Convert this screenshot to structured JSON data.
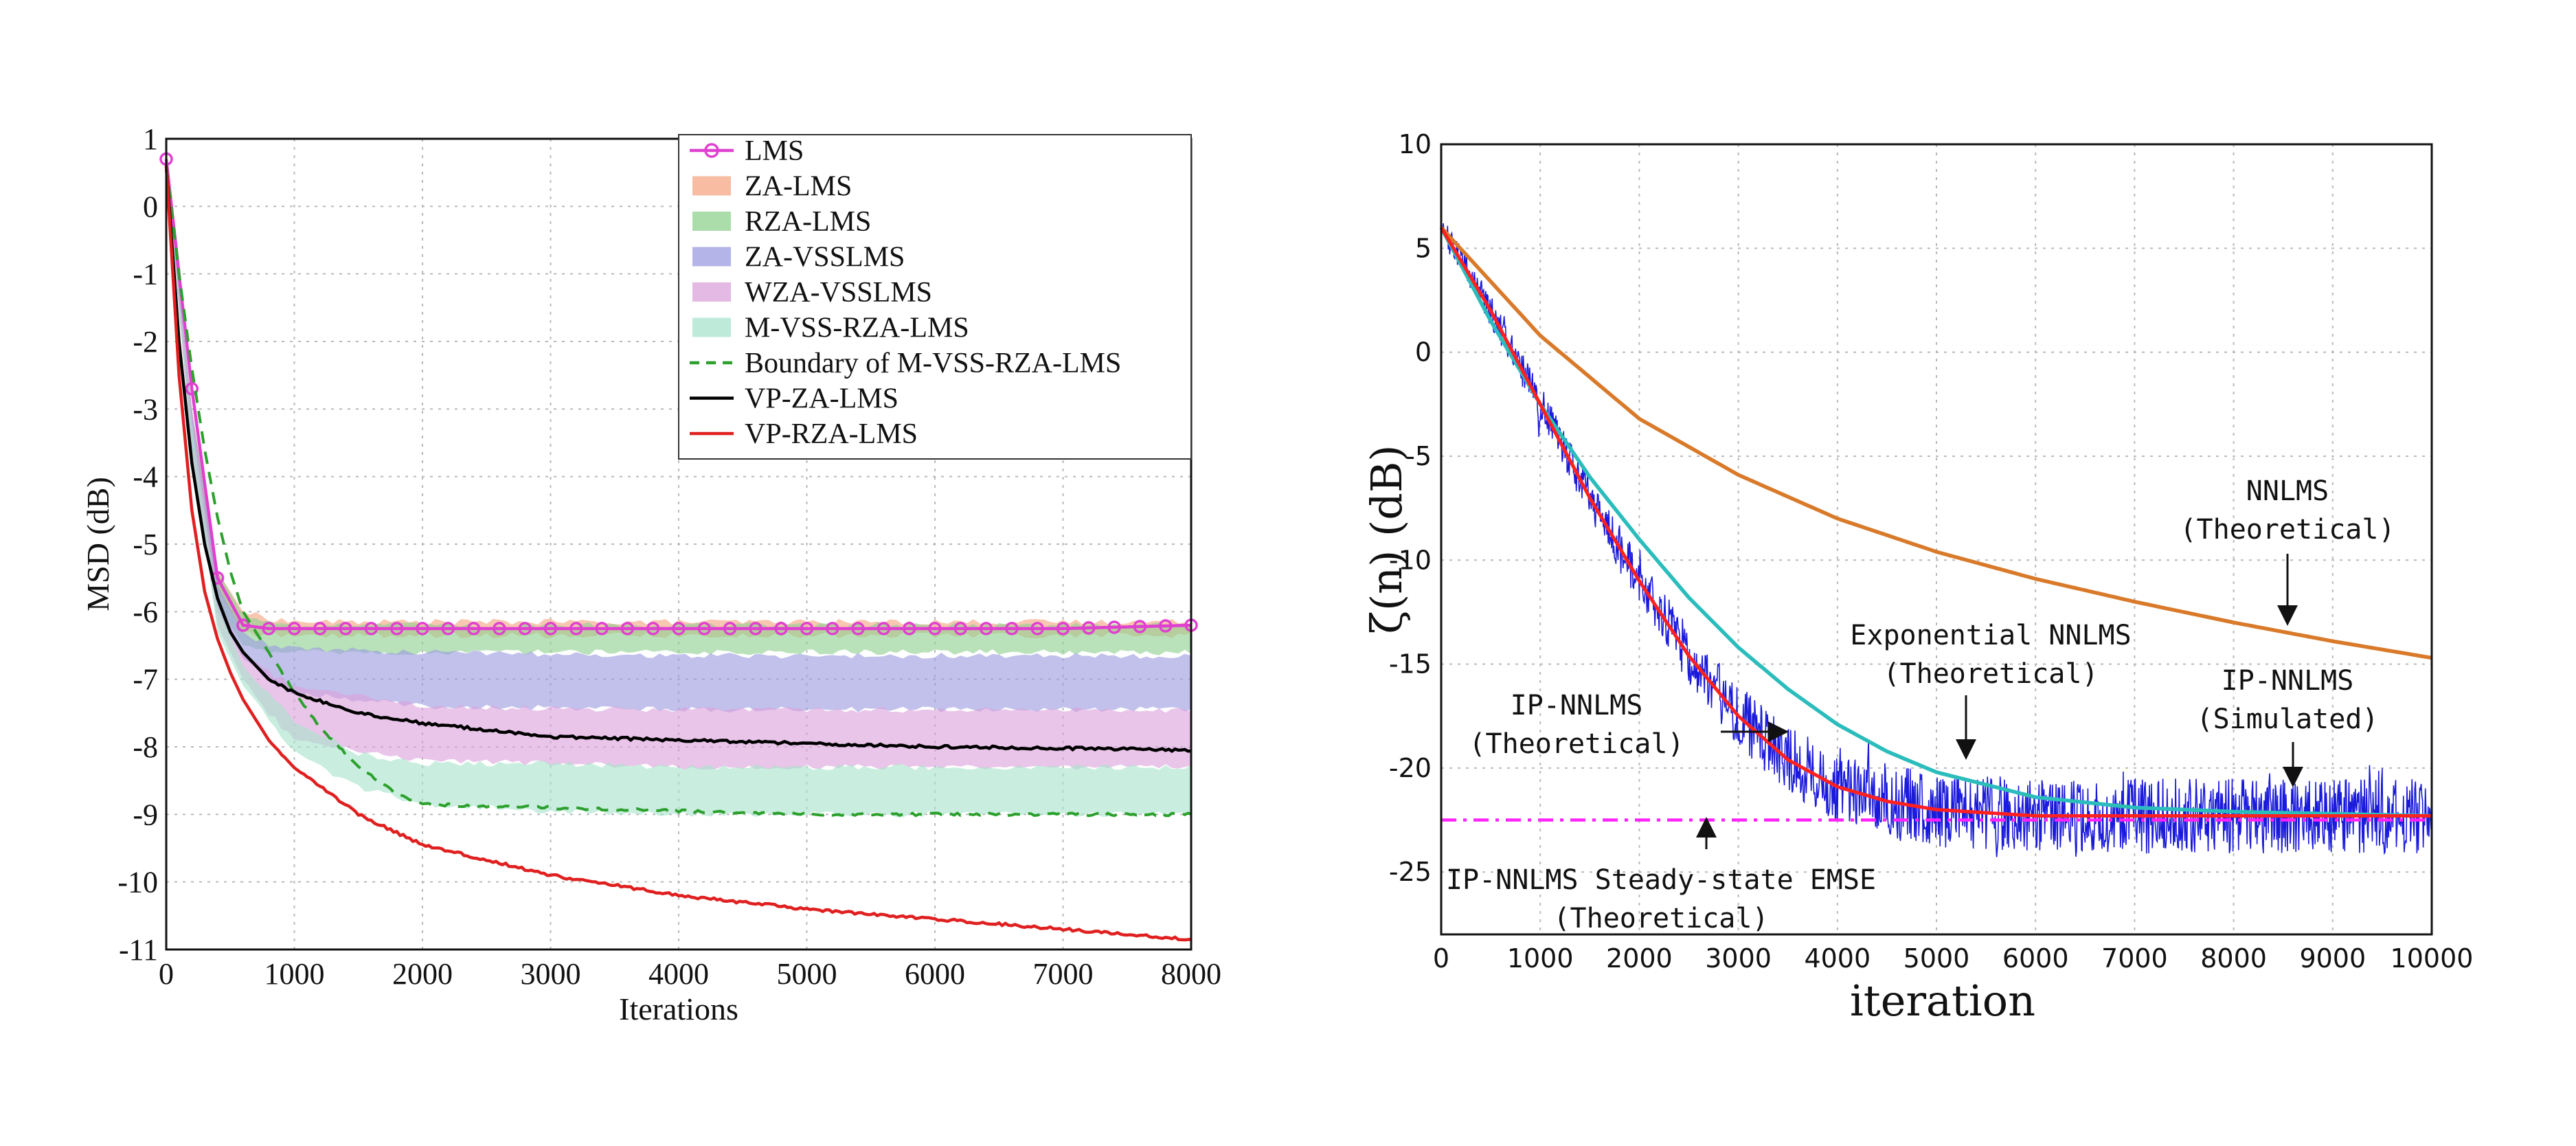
{
  "chart_data": [
    {
      "type": "line",
      "title": "",
      "xlabel": "Iterations",
      "ylabel": "MSD (dB)",
      "xlim": [
        0,
        8000
      ],
      "ylim": [
        -11,
        1
      ],
      "grid": true,
      "legend_position": "top-right",
      "xticks": [
        "0",
        "1000",
        "2000",
        "3000",
        "4000",
        "5000",
        "6000",
        "7000",
        "8000"
      ],
      "yticks": [
        "1",
        "0",
        "-1",
        "-2",
        "-3",
        "-4",
        "-5",
        "-6",
        "-7",
        "-8",
        "-9",
        "-10",
        "-11"
      ],
      "legend": [
        "LMS",
        "ZA-LMS",
        "RZA-LMS",
        "ZA-VSSLMS",
        "WZA-VSSLMS",
        "M-VSS-RZA-LMS",
        "Boundary of M-VSS-RZA-LMS",
        "VP-ZA-LMS",
        "VP-RZA-LMS"
      ],
      "series": [
        {
          "name": "LMS",
          "color": "#e040d0",
          "style": "line-circle-markers",
          "x": [
            0,
            200,
            400,
            600,
            800,
            1000,
            1500,
            2000,
            3000,
            4000,
            5000,
            6000,
            7000,
            8000
          ],
          "y": [
            0.7,
            -2.7,
            -5.5,
            -6.2,
            -6.25,
            -6.25,
            -6.25,
            -6.25,
            -6.25,
            -6.25,
            -6.25,
            -6.25,
            -6.25,
            -6.2
          ]
        },
        {
          "name": "ZA-LMS",
          "color": "#f4a582",
          "style": "band",
          "x": [
            0,
            200,
            400,
            600,
            800,
            1000,
            2000,
            4000,
            6000,
            8000
          ],
          "y_upper": [
            0.6,
            -3.0,
            -5.4,
            -6.0,
            -6.1,
            -6.15,
            -6.15,
            -6.15,
            -6.15,
            -6.15
          ],
          "y_lower": [
            0.6,
            -3.2,
            -5.7,
            -6.3,
            -6.35,
            -6.35,
            -6.35,
            -6.35,
            -6.35,
            -6.35
          ]
        },
        {
          "name": "RZA-LMS",
          "color": "#8fd18f",
          "style": "band",
          "x": [
            0,
            200,
            400,
            600,
            800,
            1000,
            2000,
            4000,
            6000,
            8000
          ],
          "y_upper": [
            0.6,
            -3.0,
            -5.4,
            -6.05,
            -6.15,
            -6.2,
            -6.2,
            -6.2,
            -6.2,
            -6.2
          ],
          "y_lower": [
            0.6,
            -3.4,
            -5.9,
            -6.5,
            -6.6,
            -6.6,
            -6.6,
            -6.6,
            -6.6,
            -6.6
          ]
        },
        {
          "name": "ZA-VSSLMS",
          "color": "#9b9be0",
          "style": "band",
          "x": [
            0,
            200,
            400,
            600,
            800,
            1000,
            2000,
            4000,
            6000,
            8000
          ],
          "y_upper": [
            0.6,
            -3.0,
            -5.6,
            -6.3,
            -6.5,
            -6.55,
            -6.6,
            -6.65,
            -6.65,
            -6.65
          ],
          "y_lower": [
            0.6,
            -3.6,
            -6.0,
            -6.7,
            -7.0,
            -7.2,
            -7.4,
            -7.45,
            -7.45,
            -7.45
          ]
        },
        {
          "name": "WZA-VSSLMS",
          "color": "#dba1db",
          "style": "band",
          "x": [
            0,
            200,
            400,
            600,
            800,
            1000,
            2000,
            4000,
            6000,
            8000
          ],
          "y_upper": [
            0.6,
            -3.0,
            -5.8,
            -6.6,
            -6.9,
            -7.1,
            -7.4,
            -7.45,
            -7.45,
            -7.45
          ],
          "y_lower": [
            0.6,
            -3.7,
            -6.2,
            -7.0,
            -7.5,
            -7.9,
            -8.2,
            -8.3,
            -8.3,
            -8.3
          ]
        },
        {
          "name": "M-VSS-RZA-LMS",
          "color": "#a8e4cc",
          "style": "band",
          "x": [
            0,
            200,
            400,
            600,
            800,
            1000,
            1500,
            2000,
            3000,
            4000,
            5000,
            6000,
            7000,
            8000
          ],
          "y_upper": [
            0.6,
            -3.2,
            -5.9,
            -6.8,
            -7.2,
            -7.6,
            -8.1,
            -8.25,
            -8.25,
            -8.3,
            -8.3,
            -8.3,
            -8.3,
            -8.3
          ],
          "y_lower": [
            0.6,
            -3.6,
            -6.3,
            -7.1,
            -7.6,
            -8.1,
            -8.6,
            -8.85,
            -8.95,
            -9.0,
            -9.0,
            -9.0,
            -9.0,
            -9.0
          ]
        },
        {
          "name": "Boundary of M-VSS-RZA-LMS",
          "color": "#2ca02c",
          "style": "dashed",
          "x": [
            0,
            100,
            200,
            300,
            400,
            500,
            600,
            800,
            1000,
            1200,
            1500,
            1800,
            2000,
            3000,
            4000,
            5000,
            6000,
            7000,
            8000
          ],
          "y": [
            0.6,
            -1.0,
            -2.4,
            -3.6,
            -4.6,
            -5.4,
            -6.0,
            -6.6,
            -7.2,
            -7.7,
            -8.3,
            -8.7,
            -8.85,
            -8.9,
            -8.95,
            -9.0,
            -9.0,
            -9.0,
            -9.0
          ]
        },
        {
          "name": "VP-ZA-LMS",
          "color": "#000000",
          "style": "line",
          "x": [
            0,
            100,
            200,
            300,
            400,
            500,
            600,
            800,
            1000,
            1500,
            2000,
            3000,
            4000,
            5000,
            6000,
            7000,
            8000
          ],
          "y": [
            0.6,
            -2.0,
            -3.8,
            -5.0,
            -5.8,
            -6.3,
            -6.6,
            -7.0,
            -7.2,
            -7.5,
            -7.65,
            -7.85,
            -7.9,
            -7.95,
            -8.0,
            -8.02,
            -8.05
          ]
        },
        {
          "name": "VP-RZA-LMS",
          "color": "#e02020",
          "style": "line",
          "x": [
            0,
            100,
            200,
            300,
            400,
            500,
            600,
            800,
            1000,
            1500,
            2000,
            3000,
            4000,
            5000,
            6000,
            7000,
            8000
          ],
          "y": [
            0.6,
            -2.5,
            -4.5,
            -5.7,
            -6.4,
            -6.9,
            -7.3,
            -7.9,
            -8.3,
            -9.0,
            -9.45,
            -9.9,
            -10.2,
            -10.4,
            -10.55,
            -10.7,
            -10.85
          ]
        }
      ]
    },
    {
      "type": "line",
      "title": "",
      "xlabel": "iteration",
      "ylabel": "ζ(n) (dB)",
      "xlim": [
        0,
        10000
      ],
      "ylim": [
        -28,
        10
      ],
      "grid": true,
      "xticks": [
        "0",
        "1000",
        "2000",
        "3000",
        "4000",
        "5000",
        "6000",
        "7000",
        "8000",
        "9000",
        "10000"
      ],
      "yticks": [
        "10",
        "5",
        "0",
        "-5",
        "-10",
        "-15",
        "-20",
        "-25"
      ],
      "series": [
        {
          "name": "NNLMS (Theoretical)",
          "color": "#d97a2a",
          "style": "line",
          "x": [
            0,
            1000,
            2000,
            3000,
            4000,
            5000,
            6000,
            7000,
            8000,
            9000,
            10000
          ],
          "y": [
            6.0,
            0.8,
            -3.2,
            -5.9,
            -8.0,
            -9.6,
            -10.9,
            -12.0,
            -13.0,
            -13.9,
            -14.7
          ]
        },
        {
          "name": "Exponential NNLMS (Theoretical)",
          "color": "#2bbcbc",
          "style": "line",
          "x": [
            0,
            500,
            1000,
            1500,
            2000,
            2500,
            3000,
            3500,
            4000,
            4500,
            5000,
            6000,
            7000,
            8000,
            9000,
            10000
          ],
          "y": [
            6.0,
            1.5,
            -2.5,
            -6.0,
            -9.0,
            -11.8,
            -14.2,
            -16.2,
            -17.9,
            -19.2,
            -20.2,
            -21.4,
            -21.9,
            -22.1,
            -22.2,
            -22.3
          ]
        },
        {
          "name": "IP-NNLMS (Theoretical)",
          "color": "#ff2020",
          "style": "line",
          "x": [
            0,
            500,
            1000,
            1500,
            2000,
            2500,
            3000,
            3500,
            4000,
            4500,
            5000,
            6000,
            7000,
            8000,
            9000,
            10000
          ],
          "y": [
            6.0,
            2.0,
            -2.5,
            -7.0,
            -11.0,
            -14.6,
            -17.5,
            -19.6,
            -20.9,
            -21.6,
            -22.0,
            -22.3,
            -22.3,
            -22.3,
            -22.3,
            -22.3
          ]
        },
        {
          "name": "IP-NNLMS (Simulated)",
          "color": "#1a1adc",
          "style": "noisy",
          "x": [
            0,
            500,
            1000,
            1500,
            2000,
            2500,
            3000,
            3500,
            4000,
            4500,
            5000,
            6000,
            7000,
            8000,
            9000,
            10000
          ],
          "y": [
            6.0,
            2.0,
            -2.5,
            -7.0,
            -11.0,
            -14.6,
            -17.5,
            -19.6,
            -20.9,
            -21.6,
            -22.0,
            -22.3,
            -22.3,
            -22.3,
            -22.3,
            -22.3
          ]
        },
        {
          "name": "IP-NNLMS Steady-state EMSE (Theoretical)",
          "color": "#ff20ff",
          "style": "dash-dot",
          "x": [
            0,
            10000
          ],
          "y": [
            -22.5,
            -22.5
          ]
        }
      ],
      "annotations": [
        {
          "id": "nnlms",
          "lines": [
            "NNLMS",
            "(Theoretical)"
          ]
        },
        {
          "id": "exp",
          "lines": [
            "Exponential NNLMS",
            "(Theoretical)"
          ]
        },
        {
          "id": "ipsim",
          "lines": [
            "IP-NNLMS",
            "(Simulated)"
          ]
        },
        {
          "id": "ipth",
          "lines": [
            "IP-NNLMS",
            "(Theoretical)"
          ]
        },
        {
          "id": "emse",
          "lines": [
            "IP-NNLMS Steady-state EMSE",
            "(Theoretical)"
          ]
        }
      ]
    }
  ]
}
